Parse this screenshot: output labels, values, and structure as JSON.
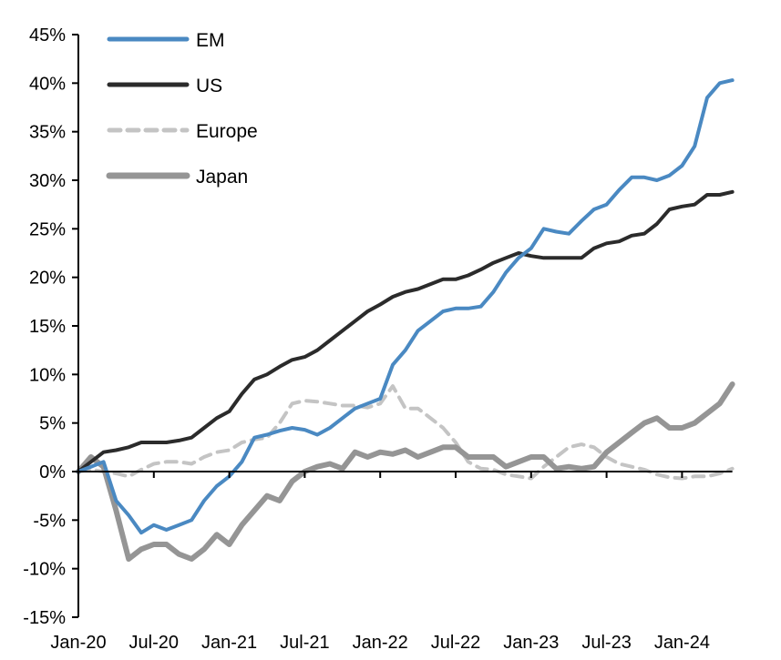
{
  "chart_data": {
    "type": "line",
    "title": "",
    "xlabel": "",
    "ylabel": "",
    "ylim": [
      -15,
      45
    ],
    "yticks": [
      "-15%",
      "-10%",
      "-5%",
      "0%",
      "5%",
      "10%",
      "15%",
      "20%",
      "25%",
      "30%",
      "35%",
      "40%",
      "45%"
    ],
    "ytick_values": [
      -15,
      -10,
      -5,
      0,
      5,
      10,
      15,
      20,
      25,
      30,
      35,
      40,
      45
    ],
    "xticks": [
      "Jan-20",
      "Jul-20",
      "Jan-21",
      "Jul-21",
      "Jan-22",
      "Jul-22",
      "Jan-23",
      "Jul-23",
      "Jan-24"
    ],
    "xtick_dates": [
      "2020-01",
      "2020-07",
      "2021-01",
      "2021-07",
      "2022-01",
      "2022-07",
      "2023-01",
      "2023-07",
      "2024-01"
    ],
    "x_start": "2020-01",
    "x_end": "2024-05",
    "grid": false,
    "legend_placement": "top-left",
    "x": [
      "2020-01",
      "2020-02",
      "2020-03",
      "2020-04",
      "2020-05",
      "2020-06",
      "2020-07",
      "2020-08",
      "2020-09",
      "2020-10",
      "2020-11",
      "2020-12",
      "2021-01",
      "2021-02",
      "2021-03",
      "2021-04",
      "2021-05",
      "2021-06",
      "2021-07",
      "2021-08",
      "2021-09",
      "2021-10",
      "2021-11",
      "2021-12",
      "2022-01",
      "2022-02",
      "2022-03",
      "2022-04",
      "2022-05",
      "2022-06",
      "2022-07",
      "2022-08",
      "2022-09",
      "2022-10",
      "2022-11",
      "2022-12",
      "2023-01",
      "2023-02",
      "2023-03",
      "2023-04",
      "2023-05",
      "2023-06",
      "2023-07",
      "2023-08",
      "2023-09",
      "2023-10",
      "2023-11",
      "2023-12",
      "2024-01",
      "2024-02",
      "2024-03",
      "2024-04",
      "2024-05"
    ],
    "series": [
      {
        "name": "EM",
        "color": "#4a89c2",
        "style": "solid",
        "values": [
          0,
          0.5,
          1,
          -3,
          -4.5,
          -6.3,
          -5.5,
          -6,
          -5.5,
          -5,
          -3,
          -1.5,
          -0.5,
          1,
          3.5,
          3.8,
          4.2,
          4.5,
          4.3,
          3.8,
          4.5,
          5.5,
          6.5,
          7,
          7.5,
          11,
          12.5,
          14.5,
          15.5,
          16.5,
          16.8,
          16.8,
          17,
          18.5,
          20.5,
          22,
          23,
          25,
          24.7,
          24.5,
          25.8,
          27,
          27.5,
          29,
          30.3,
          30.3,
          30,
          30.5,
          31.5,
          33.5,
          38.5,
          40,
          40.3
        ]
      },
      {
        "name": "US",
        "color": "#2b2b2b",
        "style": "solid",
        "values": [
          0,
          1,
          2,
          2.2,
          2.5,
          3,
          3,
          3,
          3.2,
          3.5,
          4.5,
          5.5,
          6.2,
          8,
          9.5,
          10,
          10.8,
          11.5,
          11.8,
          12.5,
          13.5,
          14.5,
          15.5,
          16.5,
          17.2,
          18,
          18.5,
          18.8,
          19.3,
          19.8,
          19.8,
          20.2,
          20.8,
          21.5,
          22,
          22.5,
          22.2,
          22,
          22,
          22,
          22,
          23,
          23.5,
          23.7,
          24.3,
          24.5,
          25.5,
          27,
          27.3,
          27.5,
          28.5,
          28.5,
          28.8
        ]
      },
      {
        "name": "Europe",
        "color": "#c4c4c4",
        "style": "dashed",
        "values": [
          0,
          0.2,
          0,
          -0.2,
          -0.5,
          0.2,
          0.8,
          1,
          1,
          0.8,
          1.5,
          2,
          2.2,
          3,
          3.3,
          3.5,
          5,
          7,
          7.3,
          7.2,
          7,
          6.8,
          6.8,
          6.6,
          7,
          8.8,
          6.5,
          6.5,
          5.5,
          4.5,
          3,
          1,
          0.3,
          0.2,
          -0.3,
          -0.5,
          -0.7,
          0.5,
          1.5,
          2.5,
          2.8,
          2.5,
          1.5,
          0.8,
          0.5,
          0.2,
          -0.3,
          -0.6,
          -0.7,
          -0.5,
          -0.5,
          -0.2,
          0.3
        ]
      },
      {
        "name": "Japan",
        "color": "#959595",
        "style": "solid-thick",
        "values": [
          0,
          1.5,
          0.5,
          -4,
          -9,
          -8,
          -7.5,
          -7.5,
          -8.5,
          -9,
          -8,
          -6.5,
          -7.5,
          -5.5,
          -4,
          -2.5,
          -3,
          -1,
          0,
          0.5,
          0.8,
          0.3,
          2,
          1.5,
          2,
          1.8,
          2.2,
          1.5,
          2,
          2.5,
          2.5,
          1.5,
          1.5,
          1.5,
          0.5,
          1,
          1.5,
          1.5,
          0.3,
          0.5,
          0.3,
          0.5,
          2,
          3,
          4,
          5,
          5.5,
          4.5,
          4.5,
          5,
          6,
          7,
          9
        ]
      }
    ]
  }
}
